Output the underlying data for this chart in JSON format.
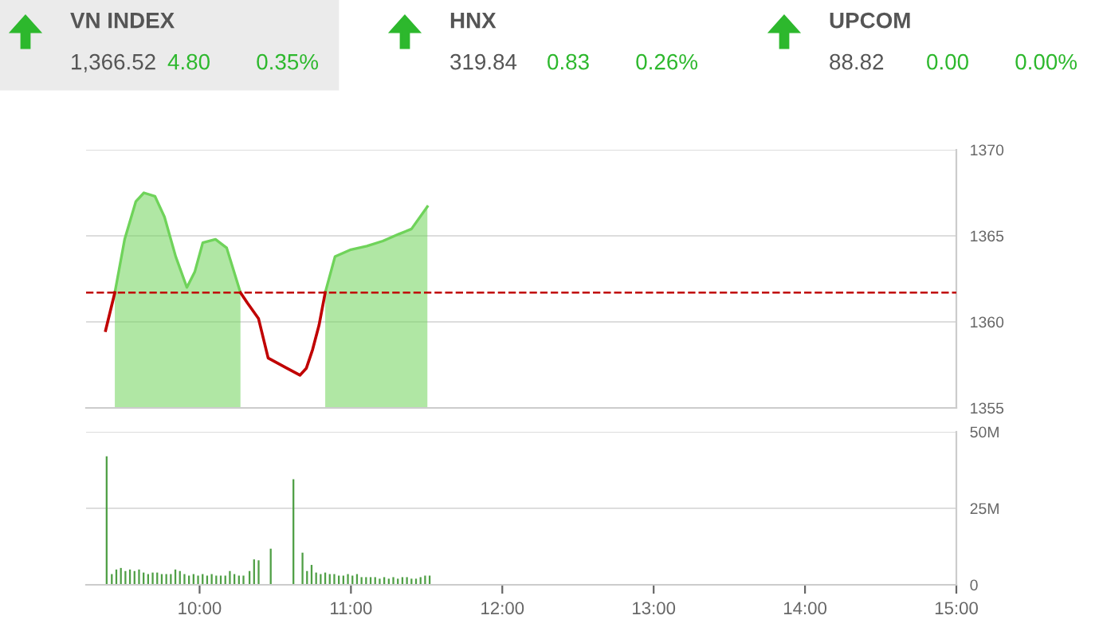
{
  "chart_data": [
    {
      "type": "other",
      "annotations": [
        "VN INDEX",
        "1,366.52",
        "4.80",
        "0.35%",
        "HNX",
        "319.84",
        "0.83",
        "0.26%",
        "UPCOM",
        "88.82",
        "0.00",
        "0.00%"
      ]
    },
    {
      "type": "area",
      "x": [
        9.379,
        9.44,
        9.505,
        9.579,
        9.632,
        9.705,
        9.768,
        9.842,
        9.916,
        9.968,
        10.021,
        10.105,
        10.179,
        10.242,
        10.27,
        10.316,
        10.389,
        10.453,
        10.579,
        10.663,
        10.705,
        10.747,
        10.789,
        10.83,
        10.895,
        11.0,
        11.105,
        11.211,
        11.316,
        11.4,
        11.505
      ],
      "series": [
        {
          "type": "area",
          "color": "#6fd35a",
          "values": [
            null,
            1361.7,
            1364.8,
            1367,
            1367.5,
            1367.3,
            1366.1,
            1363.8,
            1362.0,
            1362.9,
            1364.6,
            1364.8,
            1364.3,
            1362.5,
            1361.7,
            null,
            null,
            null,
            null,
            null,
            null,
            null,
            null,
            1361.7,
            1363.8,
            1364.2,
            1364.4,
            1364.7,
            1365.1,
            1365.4,
            1366.7
          ]
        },
        {
          "type": "line",
          "color": "#c00000",
          "values": [
            1359.5,
            1361.7,
            null,
            null,
            null,
            null,
            null,
            null,
            null,
            null,
            null,
            null,
            null,
            null,
            1361.7,
            1361.1,
            1360.2,
            1357.9,
            1357.3,
            1356.9,
            1357.3,
            1358.4,
            1359.8,
            1361.7,
            null,
            null,
            null,
            null,
            null,
            null,
            null
          ]
        }
      ],
      "xlim": [
        9.25,
        15
      ],
      "ylim": [
        1355,
        1370
      ],
      "yticks": [
        1355,
        1360,
        1365,
        1370
      ],
      "tick_labels": "y",
      "grid": "y",
      "ref_lines": [
        {
          "axis": "y",
          "value": 1361.7,
          "color": "#c00000",
          "line_style": "dashed"
        }
      ]
    },
    {
      "type": "bar",
      "x": [
        9.386,
        9.42,
        9.45,
        9.48,
        9.51,
        9.54,
        9.57,
        9.6,
        9.63,
        9.66,
        9.69,
        9.72,
        9.75,
        9.78,
        9.81,
        9.84,
        9.87,
        9.9,
        9.93,
        9.96,
        9.99,
        10.02,
        10.05,
        10.08,
        10.11,
        10.14,
        10.17,
        10.2,
        10.23,
        10.26,
        10.29,
        10.33,
        10.36,
        10.39,
        10.47,
        10.62,
        10.68,
        10.71,
        10.74,
        10.77,
        10.8,
        10.83,
        10.86,
        10.89,
        10.92,
        10.95,
        10.98,
        11.01,
        11.04,
        11.07,
        11.1,
        11.13,
        11.16,
        11.19,
        11.22,
        11.25,
        11.28,
        11.31,
        11.34,
        11.37,
        11.4,
        11.43,
        11.46,
        11.49,
        11.52
      ],
      "series": [
        {
          "color": "#4f9f45",
          "values": [
            42,
            3.5,
            5,
            5.5,
            4.5,
            5,
            4.5,
            5,
            4,
            3.5,
            4,
            4,
            3.5,
            3.5,
            3.5,
            5,
            4.5,
            3.5,
            3,
            3.5,
            3,
            3.5,
            3,
            3.5,
            3,
            3,
            3,
            4.5,
            3.5,
            3,
            3,
            4.5,
            8.3,
            8,
            11.8,
            34.5,
            10.5,
            4.5,
            6.5,
            4,
            3.5,
            4,
            3.5,
            3.5,
            3,
            3,
            3.5,
            3,
            3.5,
            2.5,
            2.5,
            2.5,
            2.5,
            2,
            2.5,
            2,
            2.5,
            2,
            2.5,
            2.5,
            2,
            2,
            2.5,
            3,
            3
          ]
        }
      ],
      "xlim": [
        9.25,
        15
      ],
      "ylim": [
        0,
        50
      ],
      "yticks": [
        {
          "value": 0,
          "label": "0"
        },
        {
          "value": 25,
          "label": "25M"
        },
        {
          "value": 50,
          "label": "50M"
        }
      ],
      "xticks": [
        {
          "value": 10,
          "label": "10:00"
        },
        {
          "value": 11,
          "label": "11:00"
        },
        {
          "value": 12,
          "label": "12:00"
        },
        {
          "value": 13,
          "label": "13:00"
        },
        {
          "value": 14,
          "label": "14:00"
        },
        {
          "value": 15,
          "label": "15:00"
        }
      ],
      "grid": "y"
    }
  ]
}
